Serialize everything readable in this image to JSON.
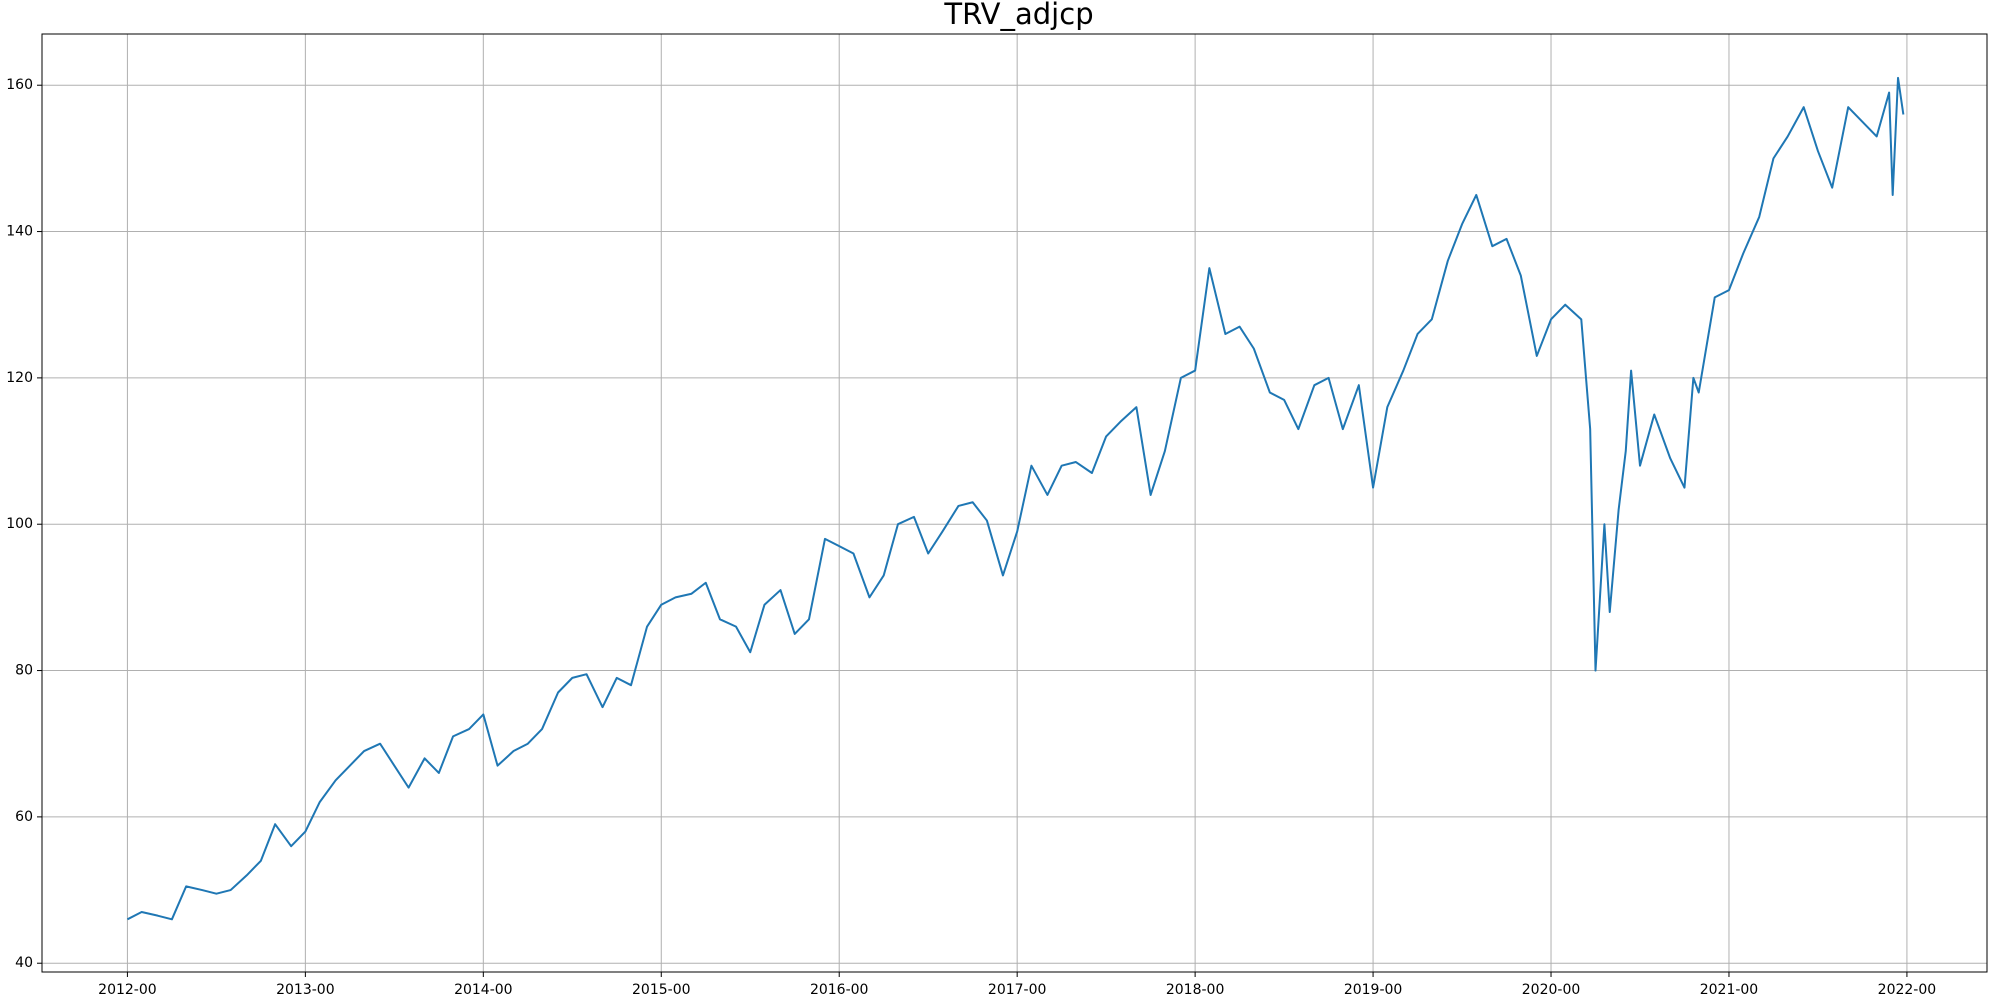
{
  "chart_data": {
    "type": "line",
    "title": "TRV_adjcp",
    "x": [
      2012.0,
      2012.08,
      2012.17,
      2012.25,
      2012.33,
      2012.42,
      2012.5,
      2012.58,
      2012.67,
      2012.75,
      2012.83,
      2012.92,
      2013.0,
      2013.08,
      2013.17,
      2013.25,
      2013.33,
      2013.42,
      2013.5,
      2013.58,
      2013.67,
      2013.75,
      2013.83,
      2013.92,
      2014.0,
      2014.08,
      2014.17,
      2014.25,
      2014.33,
      2014.42,
      2014.5,
      2014.58,
      2014.67,
      2014.75,
      2014.83,
      2014.92,
      2015.0,
      2015.08,
      2015.17,
      2015.25,
      2015.33,
      2015.42,
      2015.5,
      2015.58,
      2015.67,
      2015.75,
      2015.83,
      2015.92,
      2016.0,
      2016.08,
      2016.17,
      2016.25,
      2016.33,
      2016.42,
      2016.5,
      2016.58,
      2016.67,
      2016.75,
      2016.83,
      2016.92,
      2017.0,
      2017.08,
      2017.17,
      2017.25,
      2017.33,
      2017.42,
      2017.5,
      2017.58,
      2017.67,
      2017.75,
      2017.83,
      2017.92,
      2018.0,
      2018.08,
      2018.17,
      2018.25,
      2018.33,
      2018.42,
      2018.5,
      2018.58,
      2018.67,
      2018.75,
      2018.83,
      2018.92,
      2019.0,
      2019.08,
      2019.17,
      2019.25,
      2019.33,
      2019.42,
      2019.5,
      2019.58,
      2019.67,
      2019.75,
      2019.83,
      2019.92,
      2020.0,
      2020.08,
      2020.17,
      2020.22,
      2020.25,
      2020.3,
      2020.33,
      2020.38,
      2020.42,
      2020.45,
      2020.5,
      2020.58,
      2020.67,
      2020.75,
      2020.8,
      2020.83,
      2020.92,
      2021.0,
      2021.08,
      2021.17,
      2021.25,
      2021.33,
      2021.42,
      2021.5,
      2021.58,
      2021.67,
      2021.75,
      2021.83,
      2021.9,
      2021.92,
      2021.95,
      2021.98
    ],
    "series": [
      {
        "name": "TRV_adjcp",
        "color": "#1f77b4",
        "values": [
          46,
          47,
          46.5,
          46,
          50.5,
          50,
          49.5,
          50,
          52,
          54,
          59,
          56,
          58,
          62,
          65,
          67,
          69,
          70,
          67,
          64,
          68,
          66,
          71,
          72,
          74,
          67,
          69,
          70,
          72,
          77,
          79,
          79.5,
          75,
          79,
          78,
          86,
          89,
          90,
          90.5,
          92,
          87,
          86,
          82.5,
          89,
          91,
          85,
          87,
          98,
          97,
          96,
          90,
          93,
          100,
          101,
          96,
          99,
          102.5,
          103,
          100.5,
          93,
          99,
          108,
          104,
          108,
          108.5,
          107,
          112,
          114,
          116,
          104,
          110,
          120,
          121,
          135,
          126,
          127,
          124,
          118,
          117,
          113,
          119,
          120,
          113,
          119,
          105,
          116,
          121,
          126,
          128,
          136,
          141,
          145,
          138,
          139,
          134,
          123,
          128,
          130,
          128,
          113,
          80,
          100,
          88,
          102,
          110,
          121,
          108,
          115,
          109,
          105,
          120,
          118,
          131,
          132,
          137,
          142,
          150,
          153,
          157,
          151,
          146,
          157,
          155,
          153,
          159,
          145,
          161,
          156
        ]
      }
    ],
    "xlim": [
      2011.52,
      2022.45
    ],
    "xticks": [
      {
        "value": 2012,
        "label": "2012-00"
      },
      {
        "value": 2013,
        "label": "2013-00"
      },
      {
        "value": 2014,
        "label": "2014-00"
      },
      {
        "value": 2015,
        "label": "2015-00"
      },
      {
        "value": 2016,
        "label": "2016-00"
      },
      {
        "value": 2017,
        "label": "2017-00"
      },
      {
        "value": 2018,
        "label": "2018-00"
      },
      {
        "value": 2019,
        "label": "2019-00"
      },
      {
        "value": 2020,
        "label": "2020-00"
      },
      {
        "value": 2021,
        "label": "2021-00"
      },
      {
        "value": 2022,
        "label": "2022-00"
      }
    ],
    "ylim": [
      38.8,
      167
    ],
    "yticks": [
      40,
      60,
      80,
      100,
      120,
      140,
      160
    ],
    "grid": true
  }
}
